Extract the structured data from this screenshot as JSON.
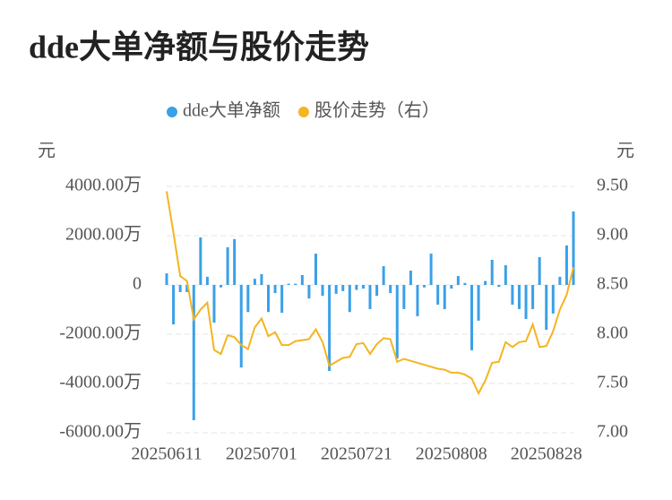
{
  "chart_data": {
    "type": "bar",
    "title": "dde大单净额与股价走势",
    "y_label": "元",
    "y2_label": "元",
    "categories": [
      "20250611",
      null,
      null,
      null,
      null,
      null,
      null,
      null,
      null,
      null,
      null,
      null,
      null,
      null,
      "20250701",
      null,
      null,
      null,
      null,
      null,
      null,
      null,
      null,
      null,
      null,
      null,
      null,
      null,
      "20250721",
      null,
      null,
      null,
      null,
      null,
      null,
      null,
      null,
      null,
      null,
      null,
      null,
      null,
      "20250808",
      null,
      null,
      null,
      null,
      null,
      null,
      null,
      null,
      null,
      null,
      null,
      null,
      null,
      "20250828",
      null,
      null,
      null,
      null
    ],
    "series": [
      {
        "name": "dde大单净额",
        "type": "bar",
        "color": "#3aa0e8",
        "values": [
          470,
          -1600,
          -290,
          -290,
          -5490,
          1930,
          330,
          -1530,
          -100,
          1530,
          1860,
          -3350,
          -1100,
          250,
          440,
          -1100,
          -330,
          -1130,
          50,
          50,
          400,
          -550,
          1270,
          -440,
          -3490,
          -360,
          -250,
          -1100,
          -200,
          -150,
          -980,
          -440,
          760,
          -330,
          -2980,
          -980,
          580,
          -1270,
          -100,
          1270,
          -800,
          -980,
          -150,
          360,
          80,
          -2650,
          -1450,
          160,
          1020,
          -80,
          800,
          -800,
          -980,
          -1380,
          -980,
          1130,
          -1820,
          -1160,
          330,
          1600,
          2980
        ]
      },
      {
        "name": "股价走势（右）",
        "type": "line",
        "axis": "y2",
        "color": "#f5b421",
        "values": [
          9.45,
          9.03,
          8.59,
          8.54,
          8.15,
          8.25,
          8.32,
          7.84,
          7.8,
          7.99,
          7.97,
          7.89,
          7.85,
          8.07,
          8.16,
          7.98,
          8.02,
          7.89,
          7.89,
          7.93,
          7.94,
          7.95,
          8.05,
          7.92,
          7.68,
          7.72,
          7.76,
          7.77,
          7.9,
          7.91,
          7.8,
          7.9,
          7.96,
          7.95,
          7.72,
          7.75,
          7.73,
          7.71,
          7.69,
          7.67,
          7.65,
          7.64,
          7.61,
          7.61,
          7.59,
          7.55,
          7.4,
          7.53,
          7.71,
          7.72,
          7.92,
          7.87,
          7.92,
          7.93,
          8.1,
          7.87,
          7.88,
          8.03,
          8.25,
          8.4,
          8.68
        ]
      }
    ],
    "ylim": [
      -6000,
      4000
    ],
    "yticks": [
      {
        "value": -6000,
        "label": "-6000.00万"
      },
      {
        "value": -4000,
        "label": "-4000.00万"
      },
      {
        "value": -2000,
        "label": "-2000.00万"
      },
      0,
      {
        "value": 2000,
        "label": "2000.00万"
      },
      {
        "value": 4000,
        "label": "4000.00万"
      }
    ],
    "y2lim": [
      7,
      9.5
    ],
    "y2ticks": [
      {
        "value": 7,
        "label": "7.00"
      },
      {
        "value": 7.5,
        "label": "7.50"
      },
      {
        "value": 8,
        "label": "8.00"
      },
      {
        "value": 8.5,
        "label": "8.50"
      },
      {
        "value": 9,
        "label": "9.00"
      },
      {
        "value": 9.5,
        "label": "9.50"
      }
    ],
    "grid": true
  }
}
